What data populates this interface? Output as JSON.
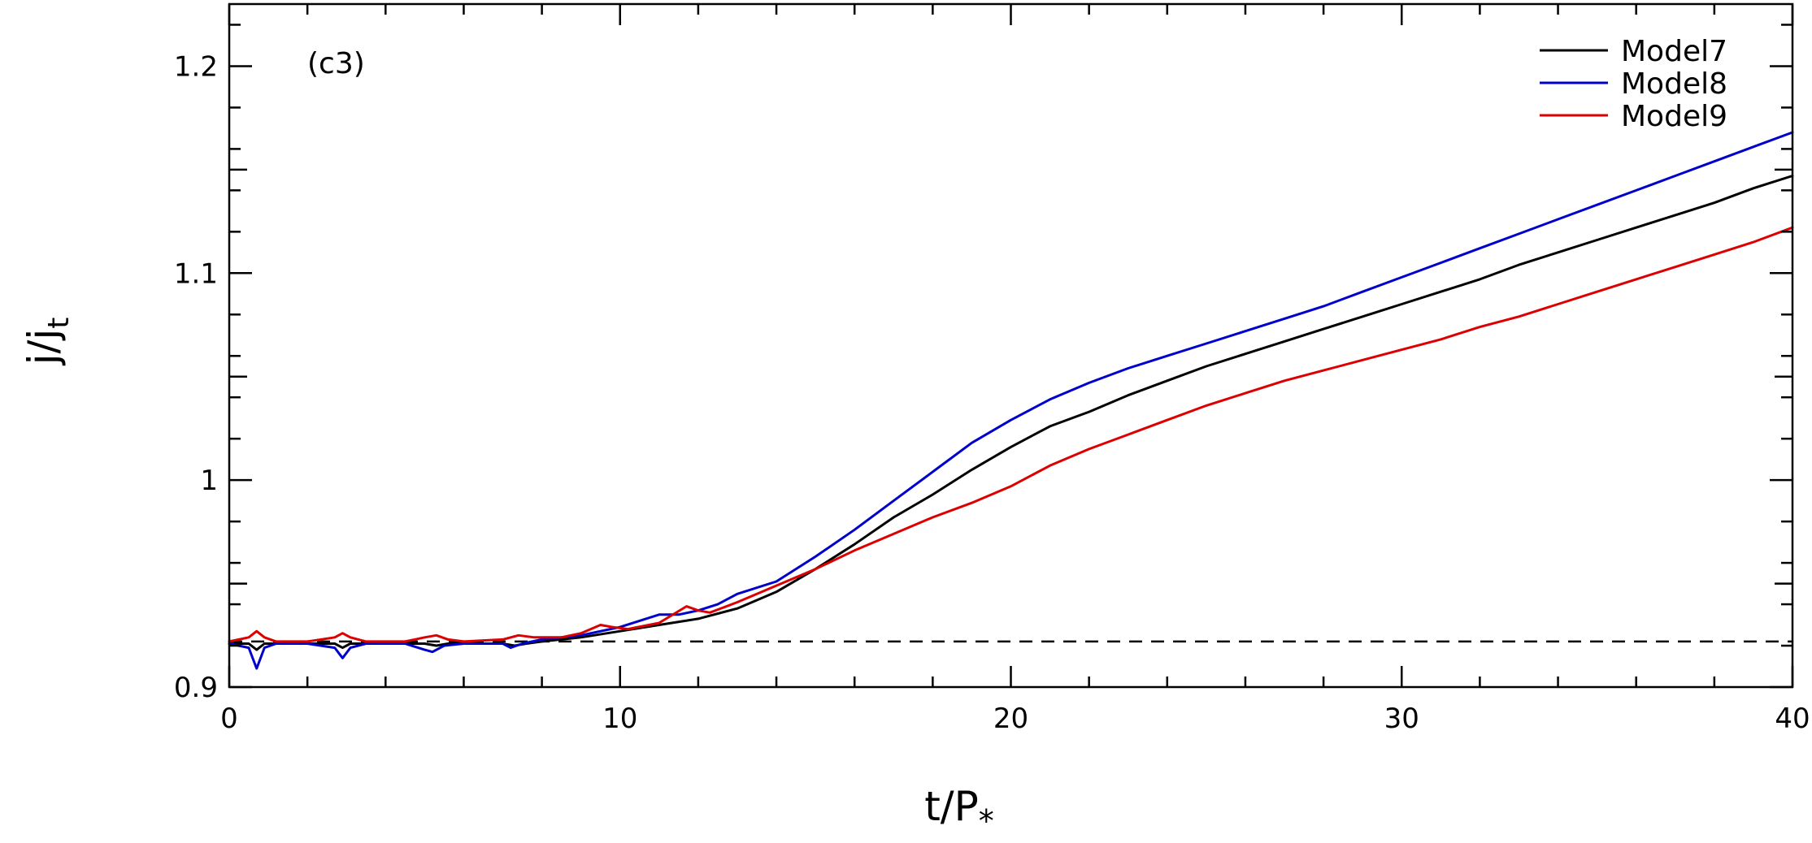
{
  "chart_data": {
    "type": "line",
    "panel_label": "(c3)",
    "xlabel": {
      "main": "t/P",
      "sub": "*"
    },
    "ylabel": {
      "main": "j/j",
      "sub": "t"
    },
    "xlim": [
      0,
      40
    ],
    "ylim": [
      0.9,
      1.23
    ],
    "x_ticks": [
      0,
      10,
      20,
      30,
      40
    ],
    "x_tick_labels": [
      "0",
      "10",
      "20",
      "30",
      "40"
    ],
    "y_ticks": [
      0.9,
      1.0,
      1.1,
      1.2
    ],
    "y_tick_labels": [
      "0.9",
      "1",
      "1.1",
      "1.2"
    ],
    "grid": false,
    "legend_position": "top-right",
    "reference_line": {
      "y": 0.922,
      "style": "dashed",
      "color": "#000000"
    },
    "series": [
      {
        "name": "Model7",
        "color": "#000000",
        "x": [
          0,
          0.5,
          0.7,
          0.9,
          1.2,
          2,
          2.7,
          2.9,
          3.1,
          3.5,
          4.5,
          5,
          5.3,
          5.6,
          6,
          7,
          7.3,
          7.6,
          8,
          9,
          10,
          11,
          12,
          13,
          14,
          15,
          16,
          17,
          18,
          19,
          20,
          21,
          22,
          23,
          24,
          25,
          26,
          27,
          28,
          29,
          30,
          31,
          32,
          33,
          34,
          35,
          36,
          37,
          38,
          39,
          40
        ],
        "values": [
          0.921,
          0.921,
          0.918,
          0.921,
          0.921,
          0.921,
          0.921,
          0.919,
          0.921,
          0.921,
          0.921,
          0.921,
          0.92,
          0.921,
          0.921,
          0.921,
          0.92,
          0.921,
          0.922,
          0.924,
          0.927,
          0.93,
          0.933,
          0.938,
          0.946,
          0.957,
          0.969,
          0.982,
          0.993,
          1.005,
          1.016,
          1.026,
          1.033,
          1.041,
          1.048,
          1.055,
          1.061,
          1.067,
          1.073,
          1.079,
          1.085,
          1.091,
          1.097,
          1.104,
          1.11,
          1.116,
          1.122,
          1.128,
          1.134,
          1.141,
          1.147
        ]
      },
      {
        "name": "Model8",
        "color": "#0000cc",
        "x": [
          0,
          0.5,
          0.7,
          0.9,
          1.2,
          2,
          2.7,
          2.9,
          3.1,
          3.5,
          4.5,
          5,
          5.2,
          5.5,
          6,
          7,
          7.2,
          7.5,
          8,
          9,
          10,
          10.5,
          11,
          11.5,
          12,
          12.5,
          13,
          14,
          15,
          16,
          17,
          18,
          19,
          20,
          21,
          22,
          23,
          24,
          25,
          26,
          27,
          28,
          29,
          30,
          31,
          32,
          33,
          34,
          35,
          36,
          37,
          38,
          39,
          40
        ],
        "values": [
          0.921,
          0.919,
          0.909,
          0.919,
          0.921,
          0.921,
          0.919,
          0.914,
          0.919,
          0.921,
          0.921,
          0.918,
          0.917,
          0.92,
          0.921,
          0.921,
          0.919,
          0.921,
          0.923,
          0.925,
          0.929,
          0.932,
          0.935,
          0.935,
          0.937,
          0.94,
          0.945,
          0.951,
          0.963,
          0.976,
          0.99,
          1.004,
          1.018,
          1.029,
          1.039,
          1.047,
          1.054,
          1.06,
          1.066,
          1.072,
          1.078,
          1.084,
          1.091,
          1.098,
          1.105,
          1.112,
          1.119,
          1.126,
          1.133,
          1.14,
          1.147,
          1.154,
          1.161,
          1.168
        ]
      },
      {
        "name": "Model9",
        "color": "#dd0000",
        "x": [
          0,
          0.5,
          0.7,
          0.9,
          1.2,
          2,
          2.7,
          2.9,
          3.1,
          3.5,
          4.5,
          5,
          5.3,
          5.6,
          6,
          7,
          7.4,
          7.8,
          8.5,
          9,
          9.5,
          9.8,
          10.2,
          11,
          11.7,
          12,
          12.3,
          13,
          14,
          15,
          16,
          17,
          18,
          19,
          20,
          21,
          22,
          23,
          24,
          25,
          26,
          27,
          28,
          29,
          30,
          31,
          32,
          33,
          34,
          35,
          36,
          37,
          38,
          39,
          40
        ],
        "values": [
          0.922,
          0.924,
          0.927,
          0.924,
          0.922,
          0.922,
          0.924,
          0.926,
          0.924,
          0.922,
          0.922,
          0.924,
          0.925,
          0.923,
          0.922,
          0.923,
          0.925,
          0.924,
          0.924,
          0.926,
          0.93,
          0.929,
          0.928,
          0.931,
          0.939,
          0.937,
          0.936,
          0.941,
          0.949,
          0.957,
          0.966,
          0.974,
          0.982,
          0.989,
          0.997,
          1.007,
          1.015,
          1.022,
          1.029,
          1.036,
          1.042,
          1.048,
          1.053,
          1.058,
          1.063,
          1.068,
          1.074,
          1.079,
          1.085,
          1.091,
          1.097,
          1.103,
          1.109,
          1.115,
          1.122
        ]
      }
    ]
  }
}
